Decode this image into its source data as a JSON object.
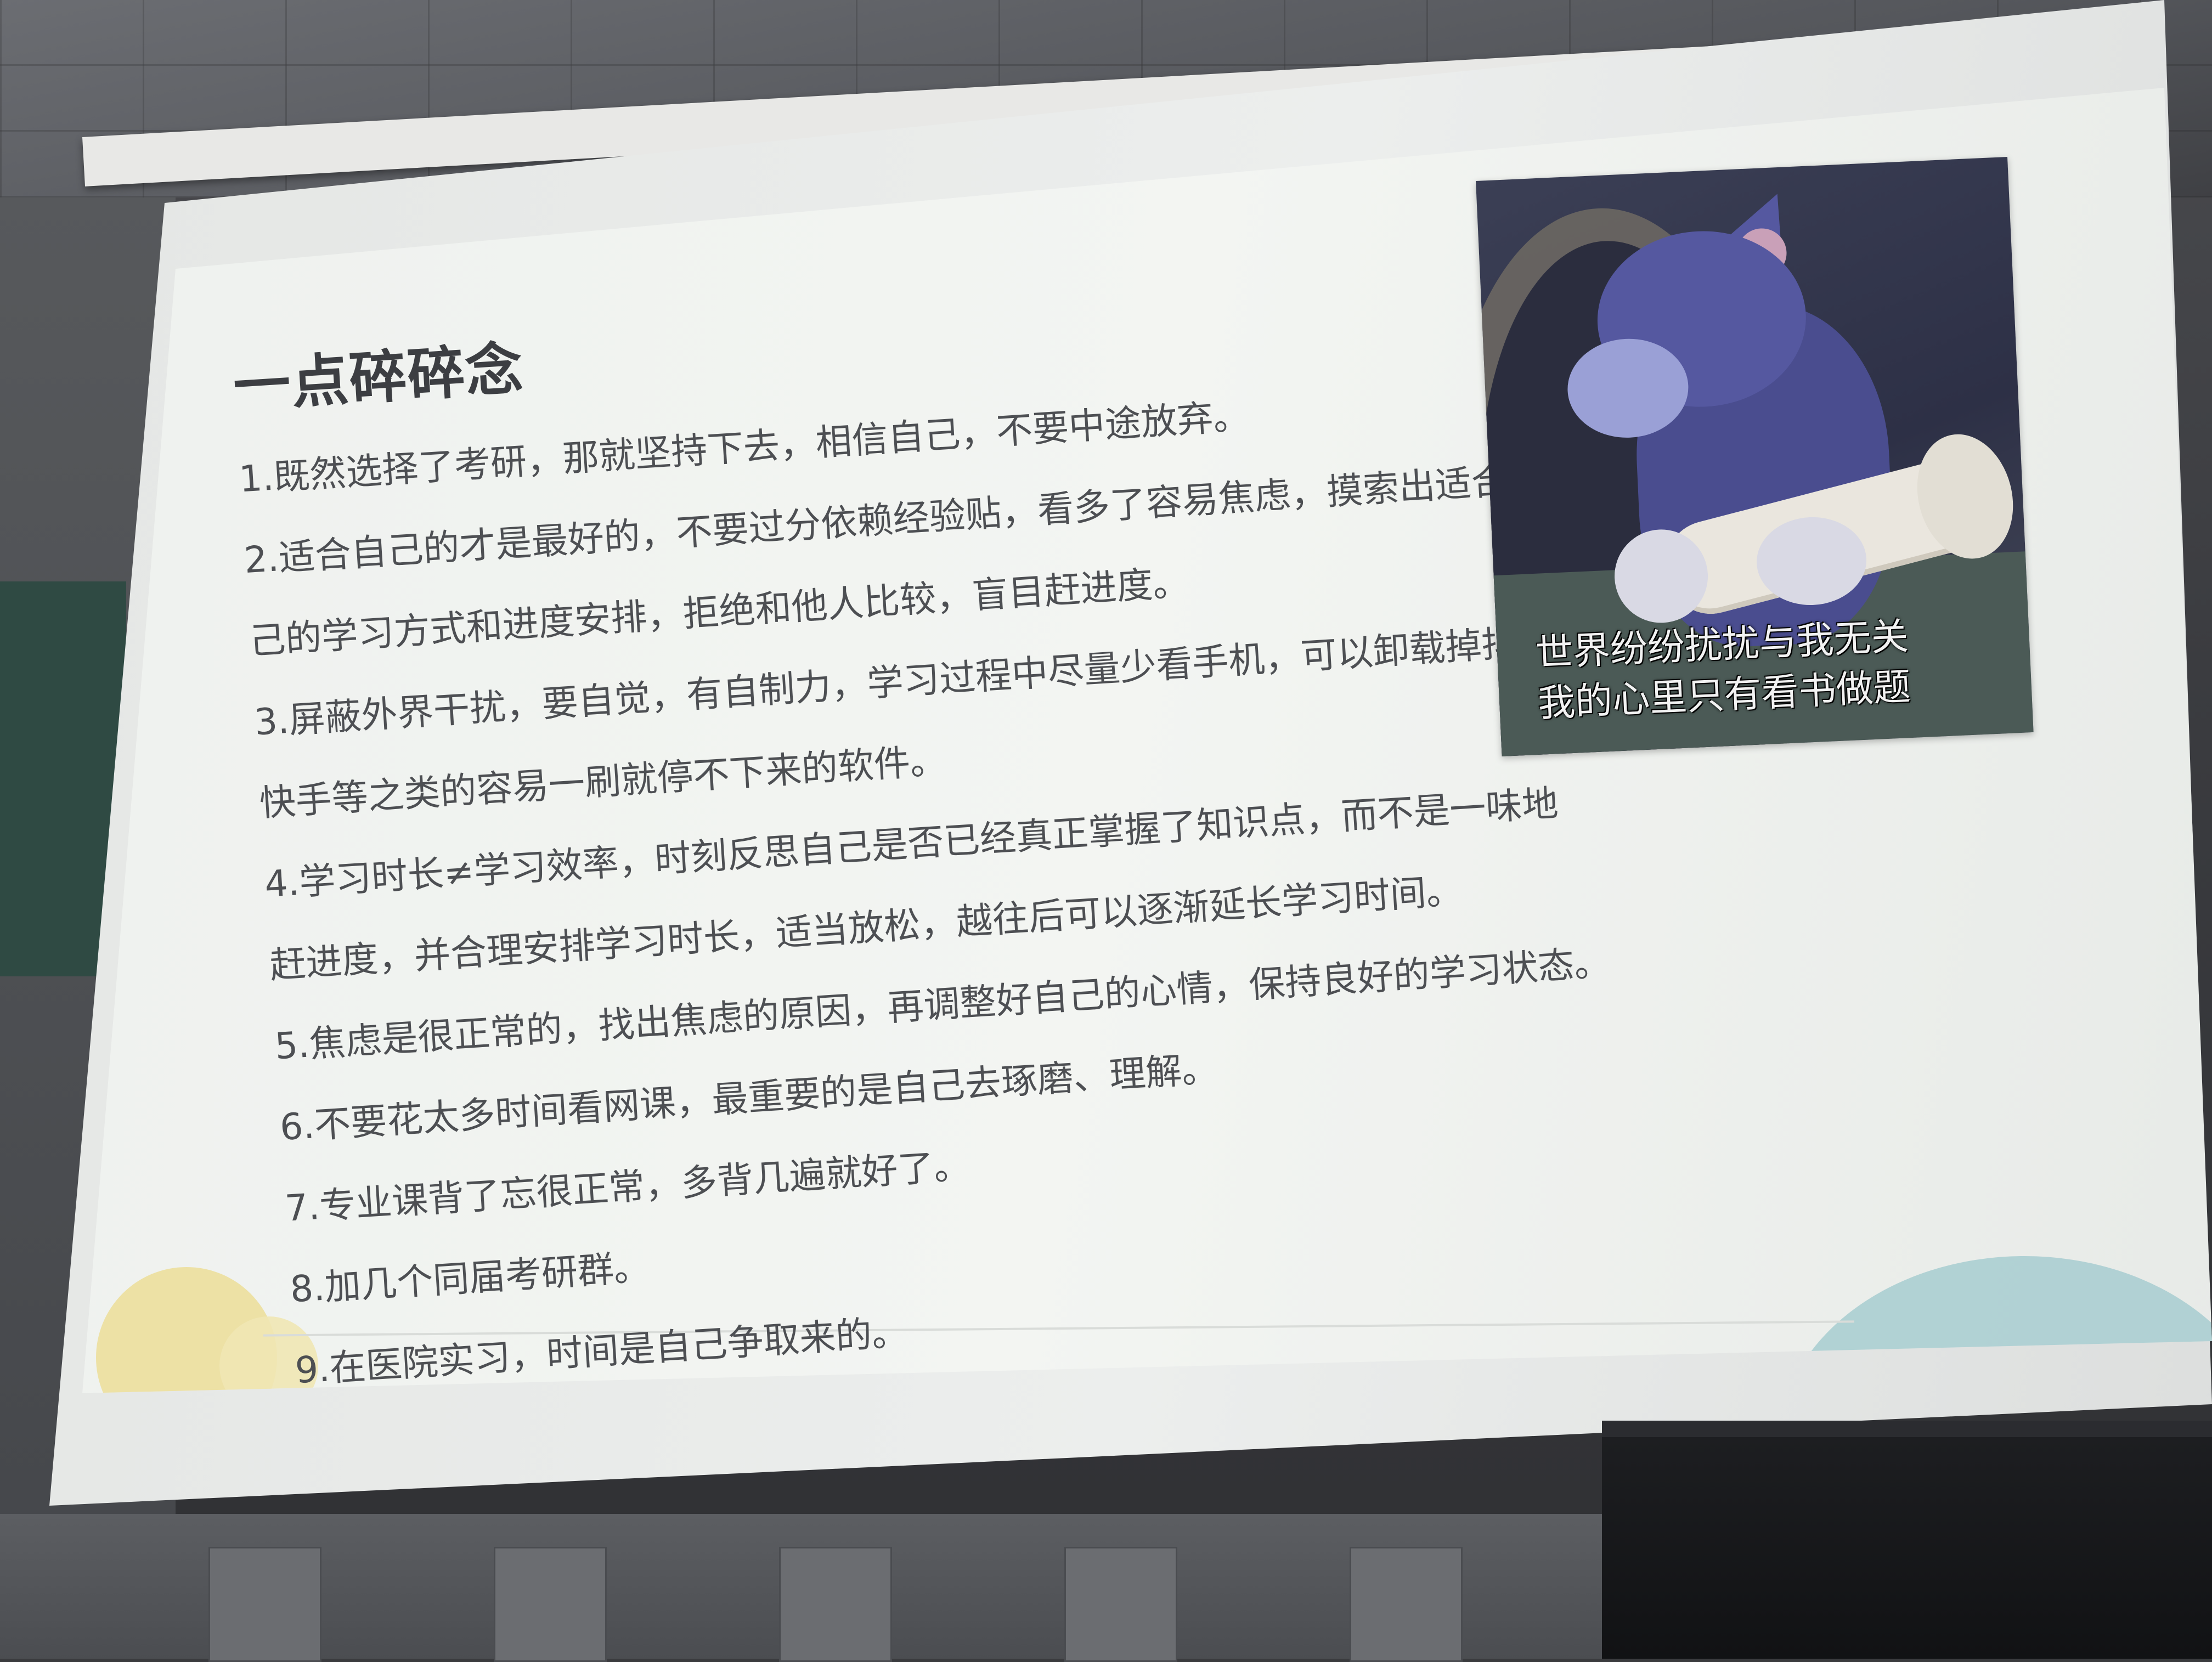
{
  "slide": {
    "title": "一点碎碎念",
    "lines": [
      "1.既然选择了考研，那就坚持下去，相信自己，不要中途放弃。",
      "2.适合自己的才是最好的，不要过分依赖经验贴，看多了容易焦虑，摸索出适合自",
      "己的学习方式和进度安排，拒绝和他人比较，盲目赶进度。",
      "3.屏蔽外界干扰，要自觉，有自制力，学习过程中尽量少看手机，可以卸载掉抖音、",
      "快手等之类的容易一刷就停不下来的软件。",
      "4.学习时长≠学习效率，时刻反思自己是否已经真正掌握了知识点，而不是一味地",
      "赶进度，并合理安排学习时长，适当放松，越往后可以逐渐延长学习时间。",
      "5.焦虑是很正常的，找出焦虑的原因，再调整好自己的心情，保持良好的学习状态。",
      "6.不要花太多时间看网课，最重要的是自己去琢磨、理解。",
      "7.专业课背了忘很正常，多背几遍就好了。",
      "8.加几个同届考研群。",
      "9.在医院实习，时间是自己争取来的。"
    ],
    "meme": {
      "caption_line1": "世界纷纷扰扰与我无关",
      "caption_line2": "我的心里只有看书做题"
    },
    "colors": {
      "text": "#4d4f53",
      "title": "#3c3e42",
      "slide_bg": "#f1f3f0",
      "deco_yellow": "#ecdf9c",
      "deco_teal": "#a7cdd0"
    }
  }
}
